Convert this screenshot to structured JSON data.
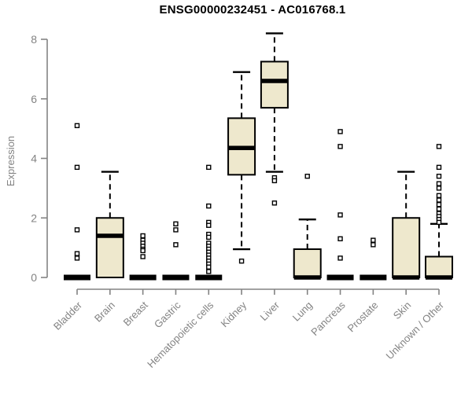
{
  "chart_data": {
    "type": "boxplot",
    "title": "ENSG00000232451 - AC016768.1",
    "ylabel": "Expression",
    "xlabel": "",
    "ylim": [
      0,
      8
    ],
    "yticks": [
      0,
      2,
      4,
      6,
      8
    ],
    "grid": "off",
    "legend": "none",
    "categories": [
      "Bladder",
      "Brain",
      "Breast",
      "Gastric",
      "Hematopoietic cells",
      "Kidney",
      "Liver",
      "Lung",
      "Pancreas",
      "Prostate",
      "Skin",
      "Unknown / Other"
    ],
    "boxes": [
      {
        "category": "Bladder",
        "low": 0,
        "q1": 0,
        "median": 0,
        "q3": 0,
        "high": 0,
        "outliers": [
          5.1,
          3.7,
          1.6,
          0.8,
          0.65
        ]
      },
      {
        "category": "Brain",
        "low": 0,
        "q1": 0,
        "median": 1.4,
        "q3": 2.0,
        "high": 3.55,
        "outliers": []
      },
      {
        "category": "Breast",
        "low": 0,
        "q1": 0,
        "median": 0,
        "q3": 0,
        "high": 0,
        "outliers": [
          1.4,
          1.25,
          1.15,
          1.05,
          0.95,
          0.9,
          0.7
        ]
      },
      {
        "category": "Gastric",
        "low": 0,
        "q1": 0,
        "median": 0,
        "q3": 0,
        "high": 0,
        "outliers": [
          1.8,
          1.6,
          1.1
        ]
      },
      {
        "category": "Hematopoietic cells",
        "low": 0,
        "q1": 0,
        "median": 0,
        "q3": 0,
        "high": 0,
        "outliers": [
          3.7,
          2.4,
          1.85,
          1.75,
          1.45,
          1.35,
          1.15,
          1.05,
          0.95,
          0.85,
          0.75,
          0.65,
          0.55,
          0.45,
          0.35,
          0.2
        ]
      },
      {
        "category": "Kidney",
        "low": 0.95,
        "q1": 3.45,
        "median": 4.35,
        "q3": 5.35,
        "high": 6.9,
        "outliers": [
          0.55
        ]
      },
      {
        "category": "Liver",
        "low": 3.55,
        "q1": 5.7,
        "median": 6.6,
        "q3": 7.25,
        "high": 8.2,
        "outliers": [
          3.35,
          3.25,
          2.5
        ]
      },
      {
        "category": "Lung",
        "low": 0,
        "q1": 0,
        "median": 0,
        "q3": 0.95,
        "high": 1.95,
        "outliers": [
          3.4
        ]
      },
      {
        "category": "Pancreas",
        "low": 0,
        "q1": 0,
        "median": 0,
        "q3": 0,
        "high": 0,
        "outliers": [
          4.9,
          4.4,
          2.1,
          1.3,
          0.65
        ]
      },
      {
        "category": "Prostate",
        "low": 0,
        "q1": 0,
        "median": 0,
        "q3": 0,
        "high": 0,
        "outliers": [
          1.25,
          1.1
        ]
      },
      {
        "category": "Skin",
        "low": 0,
        "q1": 0,
        "median": 0,
        "q3": 2.0,
        "high": 3.55,
        "outliers": []
      },
      {
        "category": "Unknown / Other",
        "low": 0,
        "q1": 0,
        "median": 0,
        "q3": 0.7,
        "high": 1.8,
        "outliers": [
          4.4,
          3.7,
          3.4,
          3.15,
          3.0,
          2.75,
          2.6,
          2.45,
          2.3,
          2.15,
          2.05,
          1.95,
          1.85
        ]
      }
    ],
    "colors": {
      "box_fill": "#EEE8CD",
      "box_border": "#000000",
      "median": "#000000",
      "outlier": "#000000",
      "axis": "#838383",
      "tick_label": "#838383",
      "title": "#000000",
      "background": "#FFFFFF"
    }
  }
}
